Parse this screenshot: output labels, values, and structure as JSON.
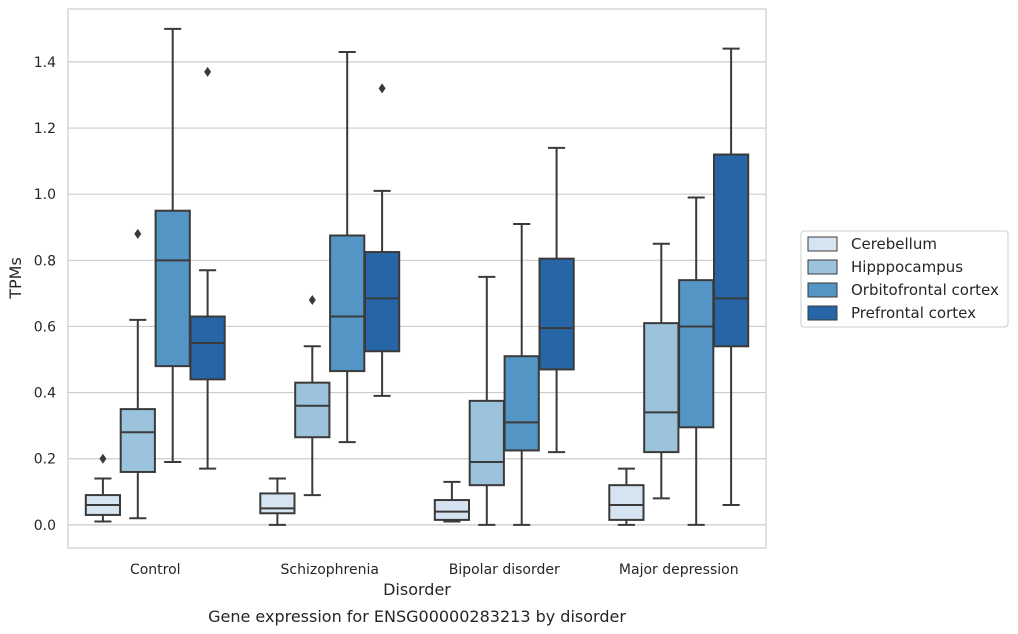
{
  "chart_data": {
    "type": "box",
    "ylabel": "TPMs",
    "xlabel": "Disorder",
    "caption": "Gene expression for ENSG00000283213 by disorder",
    "ylim": [
      -0.07,
      1.56
    ],
    "yticks": [
      0.0,
      0.2,
      0.4,
      0.6,
      0.8,
      1.0,
      1.2,
      1.4
    ],
    "ytick_labels": [
      "0.0",
      "0.2",
      "0.4",
      "0.6",
      "0.8",
      "1.0",
      "1.2",
      "1.4"
    ],
    "grid": "horizontal",
    "legend_position": "right",
    "categories": [
      "Control",
      "Schizophrenia",
      "Bipolar disorder",
      "Major depression"
    ],
    "series": [
      {
        "name": "Cerebellum",
        "color": "#d6e4f2",
        "boxes": [
          {
            "whislo": 0.01,
            "q1": 0.03,
            "med": 0.06,
            "q3": 0.09,
            "whishi": 0.14,
            "fliers": [
              0.2
            ]
          },
          {
            "whislo": 0.0,
            "q1": 0.035,
            "med": 0.05,
            "q3": 0.095,
            "whishi": 0.14,
            "fliers": []
          },
          {
            "whislo": 0.01,
            "q1": 0.015,
            "med": 0.04,
            "q3": 0.075,
            "whishi": 0.13,
            "fliers": []
          },
          {
            "whislo": 0.0,
            "q1": 0.015,
            "med": 0.06,
            "q3": 0.12,
            "whishi": 0.17,
            "fliers": []
          }
        ]
      },
      {
        "name": "Hipppocampus",
        "color": "#9cc3dc",
        "boxes": [
          {
            "whislo": 0.02,
            "q1": 0.16,
            "med": 0.28,
            "q3": 0.35,
            "whishi": 0.62,
            "fliers": [
              0.88
            ]
          },
          {
            "whislo": 0.09,
            "q1": 0.265,
            "med": 0.36,
            "q3": 0.43,
            "whishi": 0.54,
            "fliers": [
              0.68
            ]
          },
          {
            "whislo": 0.0,
            "q1": 0.12,
            "med": 0.19,
            "q3": 0.375,
            "whishi": 0.75,
            "fliers": []
          },
          {
            "whislo": 0.08,
            "q1": 0.22,
            "med": 0.34,
            "q3": 0.61,
            "whishi": 0.85,
            "fliers": []
          }
        ]
      },
      {
        "name": "Orbitofrontal cortex",
        "color": "#5396c6",
        "boxes": [
          {
            "whislo": 0.19,
            "q1": 0.48,
            "med": 0.8,
            "q3": 0.95,
            "whishi": 1.5,
            "fliers": []
          },
          {
            "whislo": 0.25,
            "q1": 0.465,
            "med": 0.63,
            "q3": 0.875,
            "whishi": 1.43,
            "fliers": []
          },
          {
            "whislo": 0.0,
            "q1": 0.225,
            "med": 0.31,
            "q3": 0.51,
            "whishi": 0.91,
            "fliers": []
          },
          {
            "whislo": 0.0,
            "q1": 0.295,
            "med": 0.6,
            "q3": 0.74,
            "whishi": 0.99,
            "fliers": []
          }
        ]
      },
      {
        "name": "Prefrontal cortex",
        "color": "#2766a6",
        "boxes": [
          {
            "whislo": 0.17,
            "q1": 0.44,
            "med": 0.55,
            "q3": 0.63,
            "whishi": 0.77,
            "fliers": [
              1.37
            ]
          },
          {
            "whislo": 0.39,
            "q1": 0.525,
            "med": 0.685,
            "q3": 0.825,
            "whishi": 1.01,
            "fliers": [
              1.32
            ]
          },
          {
            "whislo": 0.22,
            "q1": 0.47,
            "med": 0.595,
            "q3": 0.805,
            "whishi": 1.14,
            "fliers": []
          },
          {
            "whislo": 0.06,
            "q1": 0.54,
            "med": 0.685,
            "q3": 1.12,
            "whishi": 1.44,
            "fliers": []
          }
        ]
      }
    ]
  }
}
